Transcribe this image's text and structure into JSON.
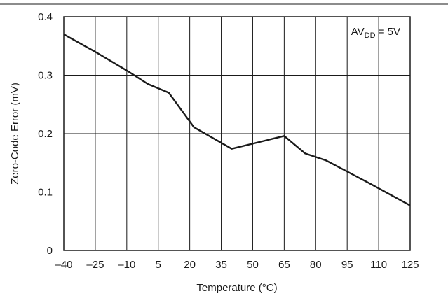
{
  "chart_data": {
    "type": "line",
    "xlabel": "Temperature (°C)",
    "ylabel": "Zero-Code Error (mV)",
    "x_ticks": [
      "–40",
      "–25",
      "–10",
      "5",
      "20",
      "35",
      "50",
      "65",
      "80",
      "95",
      "110",
      "125"
    ],
    "x_tick_values": [
      -40,
      -25,
      -10,
      5,
      20,
      35,
      50,
      65,
      80,
      95,
      110,
      125
    ],
    "y_ticks": [
      "0",
      "0.1",
      "0.2",
      "0.3",
      "0.4"
    ],
    "y_tick_values": [
      0,
      0.1,
      0.2,
      0.3,
      0.4
    ],
    "xlim": [
      -40,
      125
    ],
    "ylim": [
      0,
      0.4
    ],
    "grid": true,
    "annotation": {
      "prefix": "AV",
      "subscript": "DD",
      "suffix": " = 5V"
    },
    "series": [
      {
        "color": "#1a1a1a",
        "x": [
          -40,
          -25,
          -10,
          0,
          10,
          22,
          40,
          65,
          75,
          85,
          105,
          125
        ],
        "y": [
          0.37,
          0.34,
          0.308,
          0.285,
          0.27,
          0.211,
          0.174,
          0.196,
          0.166,
          0.154,
          0.116,
          0.077
        ]
      }
    ]
  }
}
